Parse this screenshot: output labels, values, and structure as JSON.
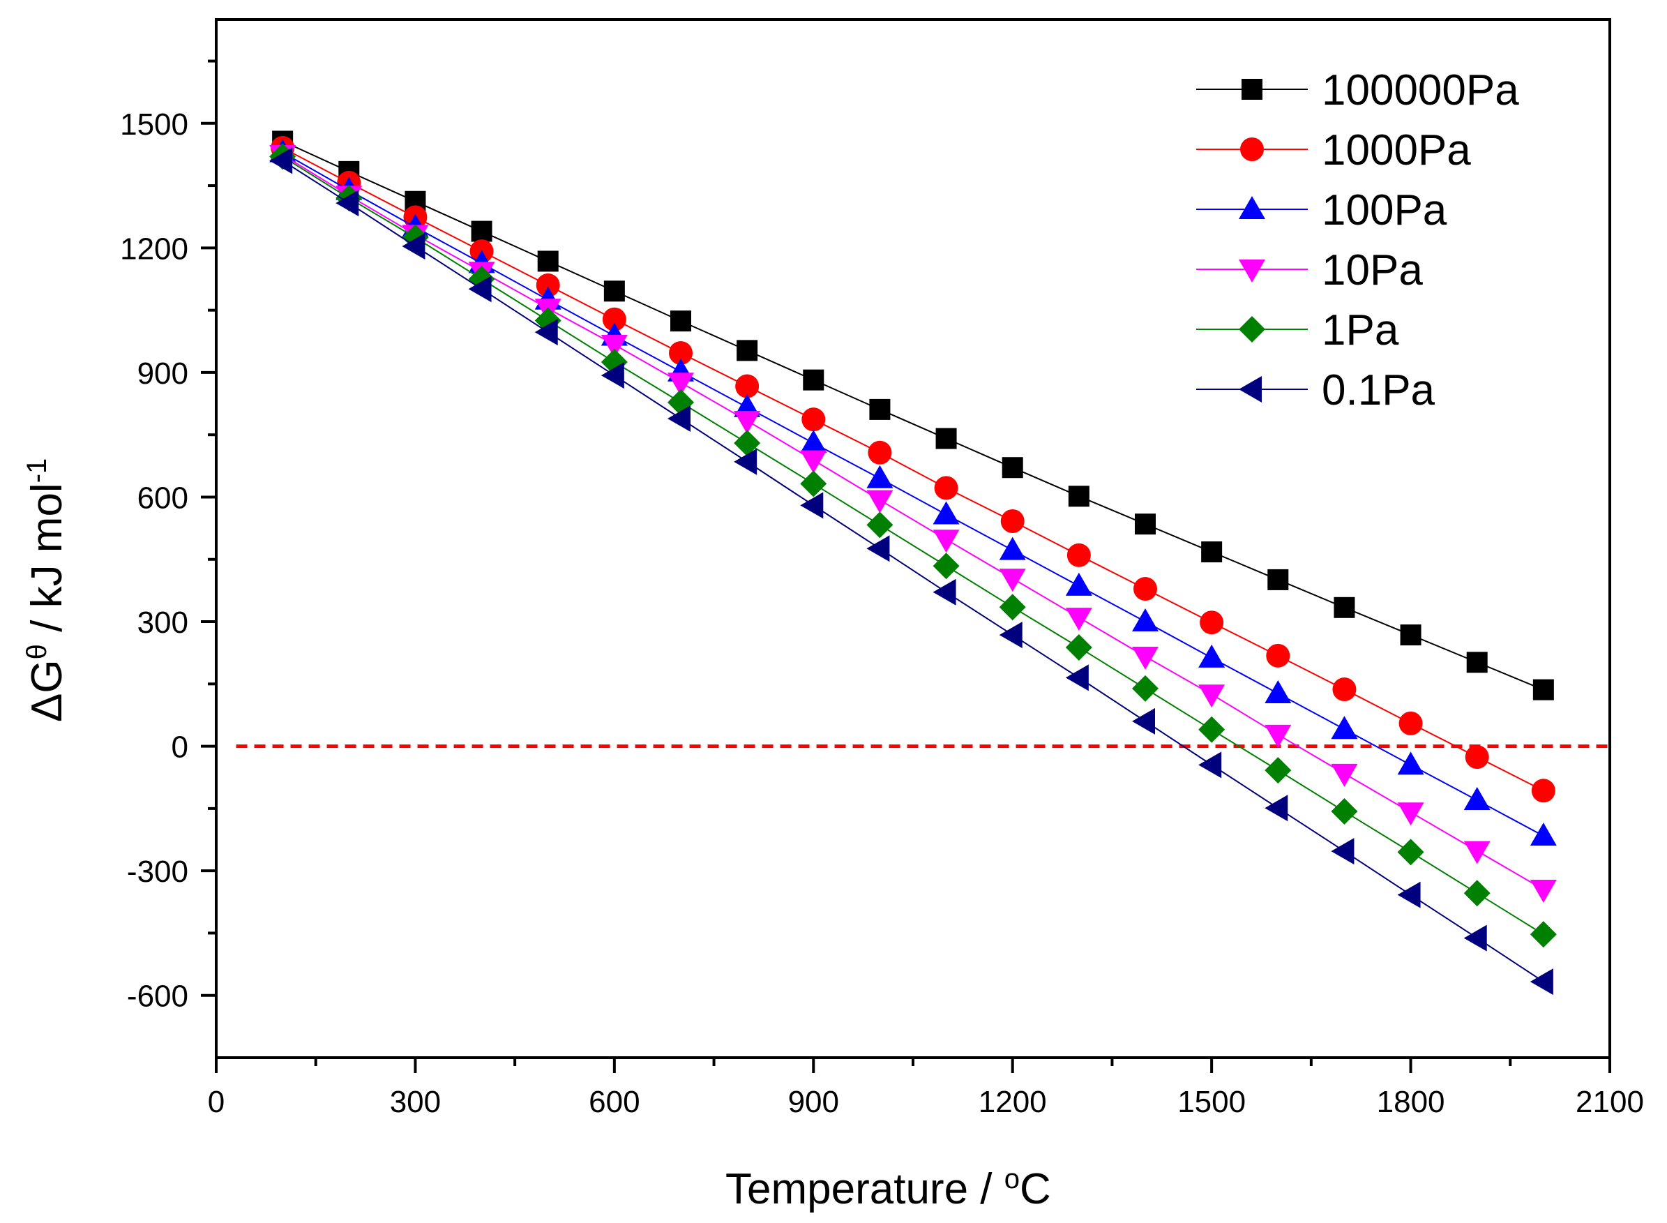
{
  "chart_data": {
    "type": "line",
    "title": "",
    "xlabel": "Temperature / °C",
    "xlabel_main": "Temperature / ",
    "xlabel_sup": "o",
    "xlabel_unit": "C",
    "ylabel": "ΔG^θ / kJ mol^-1",
    "ylabel_main": "ΔG",
    "ylabel_sup1": "θ",
    "ylabel_mid": " / kJ mol",
    "ylabel_sup2": "-1",
    "xlim": [
      0,
      2100
    ],
    "ylim": [
      -750,
      1750
    ],
    "xticks": [
      0,
      300,
      600,
      900,
      1200,
      1500,
      1800,
      2100
    ],
    "yticks": [
      -600,
      -300,
      0,
      300,
      600,
      900,
      1200,
      1500
    ],
    "grid": false,
    "legend_position": "top-right",
    "reference_line": {
      "y": 0,
      "style": "dashed",
      "color": "#ff0000",
      "x_range": [
        30,
        2100
      ]
    },
    "x": [
      100,
      200,
      300,
      400,
      500,
      600,
      700,
      800,
      900,
      1000,
      1100,
      1200,
      1300,
      1400,
      1500,
      1600,
      1700,
      1800,
      1900,
      2000
    ],
    "series": [
      {
        "name": "100000Pa",
        "color": "#000000",
        "marker": "square",
        "values": [
          1457,
          1384,
          1312,
          1240,
          1168,
          1096,
          1024,
          953,
          882,
          811,
          741,
          671,
          602,
          535,
          468,
          401,
          334,
          268,
          202,
          136
        ]
      },
      {
        "name": "1000Pa",
        "color": "#ff0000",
        "marker": "circle",
        "values": [
          1441,
          1357,
          1274,
          1192,
          1110,
          1028,
          947,
          867,
          787,
          707,
          622,
          542,
          460,
          379,
          298,
          218,
          137,
          55,
          -26,
          -107
        ]
      },
      {
        "name": "100Pa",
        "color": "#0000ff",
        "marker": "triangle-up",
        "values": [
          1430,
          1339,
          1250,
          1163,
          1075,
          988,
          902,
          816,
          730,
          645,
          558,
          472,
          386,
          300,
          213,
          127,
          41,
          -45,
          -130,
          -216
        ]
      },
      {
        "name": "10Pa",
        "color": "#ff00ff",
        "marker": "triangle-down",
        "values": [
          1424,
          1326,
          1232,
          1143,
          1054,
          967,
          876,
          784,
          689,
          593,
          498,
          404,
          310,
          216,
          125,
          28,
          -66,
          -159,
          -252,
          -345
        ]
      },
      {
        "name": "1Pa",
        "color": "#008000",
        "marker": "diamond",
        "values": [
          1420,
          1320,
          1225,
          1125,
          1025,
          925,
          828,
          730,
          632,
          533,
          434,
          335,
          238,
          139,
          40,
          -58,
          -157,
          -255,
          -354,
          -453
        ]
      },
      {
        "name": "0.1Pa",
        "color": "#00007f",
        "marker": "triangle-left",
        "values": [
          1410,
          1308,
          1204,
          1101,
          997,
          893,
          789,
          685,
          580,
          476,
          371,
          268,
          165,
          60,
          -45,
          -149,
          -253,
          -358,
          -462,
          -567
        ]
      }
    ]
  }
}
